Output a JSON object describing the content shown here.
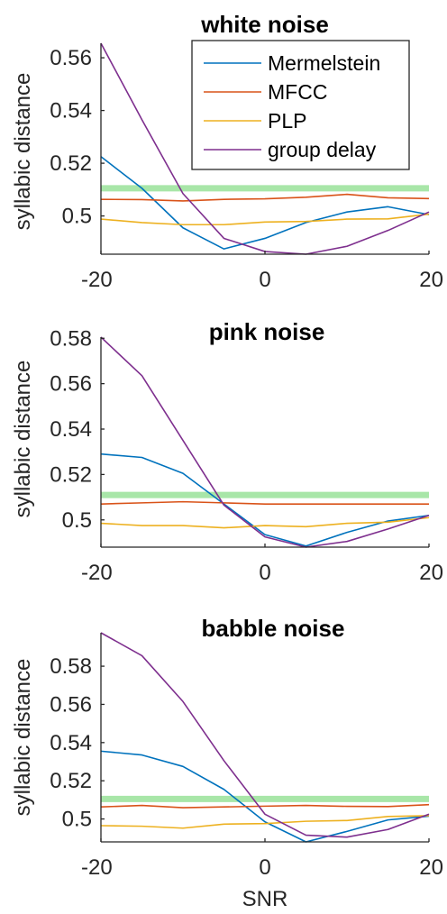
{
  "figure": {
    "xlabel": "SNR",
    "legend": {
      "placement": "top-right of first panel",
      "entries": [
        "Mermelstein",
        "MFCC",
        "PLP",
        "group delay"
      ]
    },
    "colors": {
      "Mermelstein": "#0072BD",
      "MFCC": "#D95319",
      "PLP": "#EDB120",
      "group delay": "#7E2F8E",
      "reference": "#A8E6A8",
      "axis": "#262626"
    }
  },
  "chart_data": [
    {
      "type": "line",
      "title": "white noise",
      "xlabel": "",
      "ylabel": "syllabic distance",
      "xlim": [
        -20,
        20
      ],
      "ylim": [
        0.4855,
        0.5655
      ],
      "xticks": [
        -20,
        0,
        20
      ],
      "xtick_labels": [
        "-20",
        "0",
        "20"
      ],
      "yticks": [
        0.5,
        0.52,
        0.54,
        0.56
      ],
      "ytick_labels": [
        "0.5",
        "0.52",
        "0.54",
        "0.56"
      ],
      "grid": false,
      "x": [
        -20,
        -15,
        -10,
        -5,
        0,
        5,
        10,
        15,
        20
      ],
      "reference_line": 0.5105,
      "series": [
        {
          "name": "Mermelstein",
          "values": [
            0.5225,
            0.5105,
            0.4955,
            0.4875,
            0.4915,
            0.4975,
            0.5015,
            0.5035,
            0.5005
          ]
        },
        {
          "name": "MFCC",
          "values": [
            0.5063,
            0.5062,
            0.5057,
            0.5063,
            0.5065,
            0.5071,
            0.5082,
            0.5069,
            0.5066
          ]
        },
        {
          "name": "PLP",
          "values": [
            0.4988,
            0.4975,
            0.4967,
            0.4967,
            0.4977,
            0.4979,
            0.4988,
            0.4989,
            0.5007
          ]
        },
        {
          "name": "group delay",
          "values": [
            0.5655,
            0.5365,
            0.5085,
            0.4915,
            0.4865,
            0.4855,
            0.4885,
            0.4945,
            0.5015
          ]
        }
      ]
    },
    {
      "type": "line",
      "title": "pink noise",
      "xlabel": "",
      "ylabel": "syllabic distance",
      "xlim": [
        -20,
        20
      ],
      "ylim": [
        0.488,
        0.5805
      ],
      "xticks": [
        -20,
        0,
        20
      ],
      "xtick_labels": [
        "-20",
        "0",
        "20"
      ],
      "yticks": [
        0.5,
        0.52,
        0.54,
        0.56,
        0.58
      ],
      "ytick_labels": [
        "0.5",
        "0.52",
        "0.54",
        "0.56",
        "0.58"
      ],
      "grid": false,
      "x": [
        -20,
        -15,
        -10,
        -5,
        0,
        5,
        10,
        15,
        20
      ],
      "reference_line": 0.511,
      "series": [
        {
          "name": "Mermelstein",
          "values": [
            0.529,
            0.5275,
            0.5205,
            0.507,
            0.4935,
            0.4885,
            0.4945,
            0.4995,
            0.502
          ]
        },
        {
          "name": "MFCC",
          "values": [
            0.507,
            0.5075,
            0.508,
            0.5075,
            0.507,
            0.507,
            0.507,
            0.507,
            0.507
          ]
        },
        {
          "name": "PLP",
          "values": [
            0.4985,
            0.4975,
            0.4975,
            0.4965,
            0.4975,
            0.497,
            0.4985,
            0.499,
            0.501
          ]
        },
        {
          "name": "group delay",
          "values": [
            0.5805,
            0.5635,
            0.535,
            0.5065,
            0.4925,
            0.488,
            0.4905,
            0.496,
            0.502
          ]
        }
      ]
    },
    {
      "type": "line",
      "title": "babble noise",
      "xlabel": "SNR",
      "ylabel": "syllabic distance",
      "xlim": [
        -20,
        20
      ],
      "ylim": [
        0.488,
        0.5975
      ],
      "xticks": [
        -20,
        0,
        20
      ],
      "xtick_labels": [
        "-20",
        "0",
        "20"
      ],
      "yticks": [
        0.5,
        0.52,
        0.54,
        0.56,
        0.58
      ],
      "ytick_labels": [
        "0.5",
        "0.52",
        "0.54",
        "0.56",
        "0.58"
      ],
      "grid": false,
      "x": [
        -20,
        -15,
        -10,
        -5,
        0,
        5,
        10,
        15,
        20
      ],
      "reference_line": 0.5105,
      "series": [
        {
          "name": "Mermelstein",
          "values": [
            0.5355,
            0.5335,
            0.5275,
            0.5155,
            0.4985,
            0.488,
            0.4935,
            0.4995,
            0.5015
          ]
        },
        {
          "name": "MFCC",
          "values": [
            0.5063,
            0.5071,
            0.5059,
            0.5063,
            0.5067,
            0.5071,
            0.5066,
            0.5065,
            0.5075
          ]
        },
        {
          "name": "PLP",
          "values": [
            0.4965,
            0.4962,
            0.4952,
            0.4973,
            0.4976,
            0.4988,
            0.4992,
            0.5013,
            0.5017
          ]
        },
        {
          "name": "group delay",
          "values": [
            0.5975,
            0.5855,
            0.5615,
            0.5305,
            0.5025,
            0.4915,
            0.4905,
            0.4945,
            0.5025
          ]
        }
      ]
    }
  ]
}
